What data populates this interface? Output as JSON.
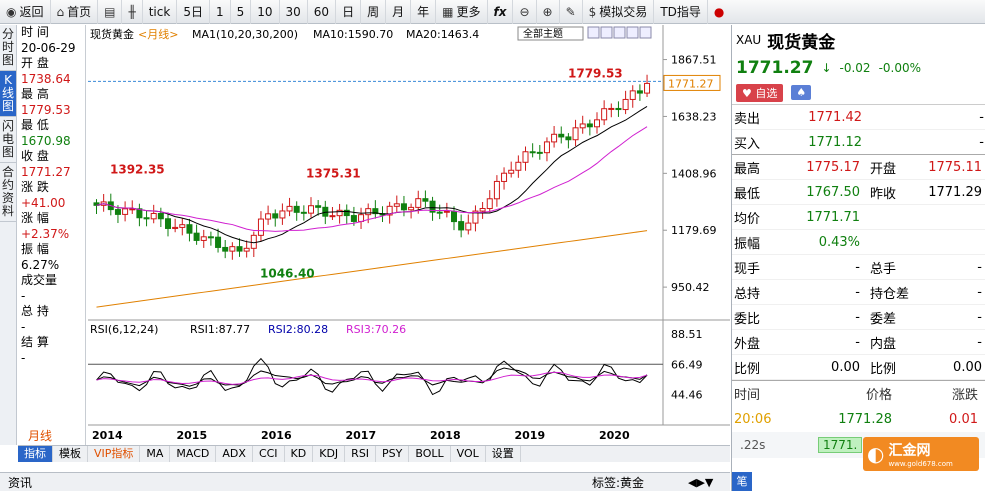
{
  "toolbar": {
    "back": "返回",
    "home": "首页",
    "tick": "tick",
    "periods": [
      "5日",
      "1",
      "5",
      "10",
      "30",
      "60",
      "日",
      "周",
      "月",
      "年"
    ],
    "more": "更多",
    "fx": "fx",
    "sim": "模拟交易",
    "td": "TD指导"
  },
  "left_tabs": [
    "分时图",
    "K线图",
    "闪电图",
    "合约资料"
  ],
  "info": [
    [
      "时 间",
      "20-06-29",
      ""
    ],
    [
      "开 盘",
      "1738.64",
      "red"
    ],
    [
      "最 高",
      "1779.53",
      "red"
    ],
    [
      "最 低",
      "1670.98",
      "grn"
    ],
    [
      "收 盘",
      "1771.27",
      "red"
    ],
    [
      "涨 跌",
      "+41.00",
      "red"
    ],
    [
      "涨 幅",
      "+2.37%",
      "red"
    ],
    [
      "振 幅",
      "6.27%",
      ""
    ],
    [
      "成交量",
      "-",
      ""
    ],
    [
      "总 持",
      "-",
      ""
    ],
    [
      "结 算",
      "-",
      ""
    ]
  ],
  "period_tag": "月线",
  "header": {
    "name": "现货黄金",
    "period": "<月线>",
    "ma_label": "MA1(10,20,30,200)",
    "ma10": "MA10:1590.70",
    "ma20": "MA20:1463.4",
    "topics": "全部主题"
  },
  "rsi_header": {
    "label": "RSI(6,12,24)",
    "rsi1": "RSI1:87.77",
    "rsi2": "RSI2:80.28",
    "rsi3": "RSI3:70.26"
  },
  "chart_data": {
    "type": "candlestick",
    "x_labels": [
      "2014",
      "2015",
      "2016",
      "2017",
      "2018",
      "2019",
      "2020"
    ],
    "y_ticks": [
      1867.51,
      1638.23,
      1408.96,
      1179.69,
      950.42
    ],
    "ylim": [
      830,
      1910
    ],
    "annotations": [
      {
        "text": "1392.35",
        "value": 1392.35
      },
      {
        "text": "1375.31",
        "value": 1375.31
      },
      {
        "text": "1046.40",
        "value": 1046.4
      },
      {
        "text": "1779.53",
        "value": 1779.53
      }
    ],
    "current_price": 1771.27,
    "ma_labels": [
      "MA10",
      "MA20",
      "MA200"
    ],
    "rsi_ticks": [
      88.51,
      66.49,
      44.46
    ],
    "rsi_ylim": [
      26,
      95
    ],
    "rsi_ref": 66.49
  },
  "bottom_tabs": [
    "指标",
    "模板",
    "VIP指标",
    "MA",
    "MACD",
    "ADX",
    "CCI",
    "KD",
    "KDJ",
    "RSI",
    "PSY",
    "BOLL",
    "VOL",
    "设置"
  ],
  "status": {
    "left": "资讯",
    "sign": "标签:黄金"
  },
  "rp": {
    "code": "XAU",
    "name": "现货黄金",
    "price": "1771.27",
    "chg": "-0.02",
    "pct": "-0.00%",
    "btn1": "自选",
    "ask": "1771.42",
    "bid": "1771.12",
    "sell": "卖出",
    "buy": "买入",
    "grid": [
      [
        "最高",
        "1775.17",
        "开盘",
        "1775.11"
      ],
      [
        "最低",
        "1767.50",
        "昨收",
        "1771.29"
      ],
      [
        "均价",
        "1771.71",
        "",
        ""
      ],
      [
        "振幅",
        "0.43%",
        "",
        ""
      ],
      [
        "现手",
        "-",
        "总手",
        "-"
      ],
      [
        "总持",
        "-",
        "持仓差",
        "-"
      ],
      [
        "委比",
        "-",
        "委差",
        "-"
      ],
      [
        "外盘",
        "-",
        "内盘",
        "-"
      ],
      [
        "比例",
        "0.00",
        "比例",
        "0.00"
      ]
    ],
    "trade_head": [
      "时间",
      "价格",
      "涨跌"
    ],
    "trade": [
      "20:06",
      "1771.28",
      "0.01"
    ],
    "last_time": ".22s",
    "last_price": "1771.",
    "brand": "汇金网",
    "brand_url": "www.gold678.com"
  }
}
